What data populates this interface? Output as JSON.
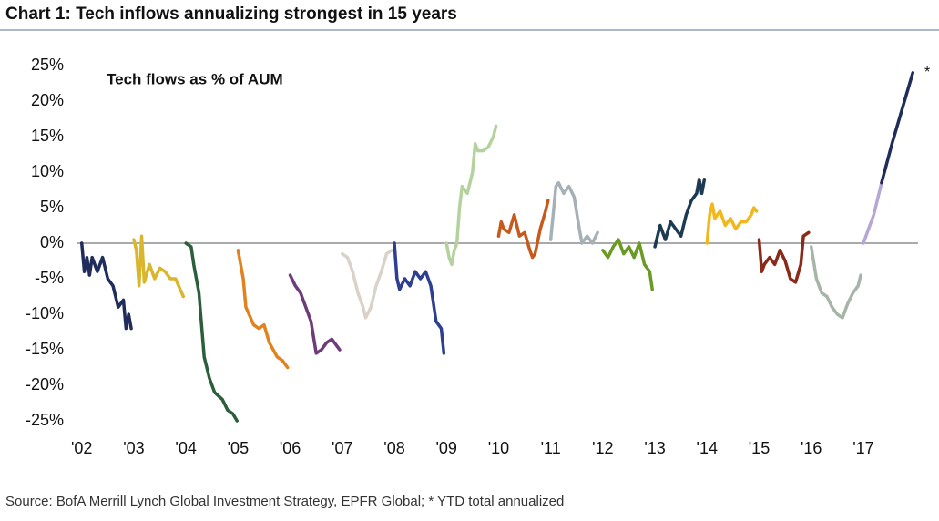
{
  "chart_data": {
    "type": "line",
    "title": "Chart 1: Tech inflows annualizing strongest in 15 years",
    "subtitle": "Tech flows as % of AUM",
    "annotation": "*",
    "source": "Source: BofA Merrill Lynch Global Investment Strategy, EPFR Global; * YTD total annualized",
    "xlim": [
      2001.9,
      2018.05
    ],
    "ylim": [
      -25,
      25
    ],
    "yticks": [
      {
        "value": 25,
        "label": "25%"
      },
      {
        "value": 20,
        "label": "20%"
      },
      {
        "value": 15,
        "label": "15%"
      },
      {
        "value": 10,
        "label": "10%"
      },
      {
        "value": 5,
        "label": "5%"
      },
      {
        "value": 0,
        "label": "0%"
      },
      {
        "value": -5,
        "label": "-5%"
      },
      {
        "value": -10,
        "label": "-10%"
      },
      {
        "value": -15,
        "label": "-15%"
      },
      {
        "value": -20,
        "label": "-20%"
      },
      {
        "value": -25,
        "label": "-25%"
      }
    ],
    "xticks": [
      {
        "value": 2002,
        "label": "'02"
      },
      {
        "value": 2003,
        "label": "'03"
      },
      {
        "value": 2004,
        "label": "'04"
      },
      {
        "value": 2005,
        "label": "'05"
      },
      {
        "value": 2006,
        "label": "'06"
      },
      {
        "value": 2007,
        "label": "'07"
      },
      {
        "value": 2008,
        "label": "'08"
      },
      {
        "value": 2009,
        "label": "'09"
      },
      {
        "value": 2010,
        "label": "'10"
      },
      {
        "value": 2011,
        "label": "'11"
      },
      {
        "value": 2012,
        "label": "'12"
      },
      {
        "value": 2013,
        "label": "'13"
      },
      {
        "value": 2014,
        "label": "'14"
      },
      {
        "value": 2015,
        "label": "'15"
      },
      {
        "value": 2016,
        "label": "'16"
      },
      {
        "value": 2017,
        "label": "'17"
      }
    ],
    "series": [
      {
        "color": "#1f2d5a",
        "x": [
          2002.0,
          2002.05,
          2002.1,
          2002.15,
          2002.2,
          2002.3,
          2002.4,
          2002.5,
          2002.6,
          2002.7,
          2002.8,
          2002.85,
          2002.9,
          2002.95
        ],
        "values": [
          0,
          -4,
          -2,
          -4.5,
          -2,
          -4,
          -2,
          -5,
          -6,
          -9,
          -8,
          -12,
          -10,
          -12
        ]
      },
      {
        "color": "#d9b62c",
        "x": [
          2003.0,
          2003.05,
          2003.1,
          2003.15,
          2003.2,
          2003.3,
          2003.4,
          2003.5,
          2003.6,
          2003.7,
          2003.8,
          2003.95
        ],
        "values": [
          0.5,
          -1,
          -6,
          1,
          -5.5,
          -3,
          -5,
          -3.5,
          -4,
          -5,
          -5,
          -7.5
        ]
      },
      {
        "color": "#2d5e3a",
        "x": [
          2004.0,
          2004.1,
          2004.15,
          2004.25,
          2004.35,
          2004.45,
          2004.55,
          2004.7,
          2004.8,
          2004.9,
          2004.98
        ],
        "values": [
          0,
          -0.5,
          -3,
          -7,
          -16,
          -19,
          -21,
          -22,
          -23.5,
          -24,
          -25
        ]
      },
      {
        "color": "#e0821e",
        "x": [
          2005.0,
          2005.1,
          2005.15,
          2005.3,
          2005.4,
          2005.5,
          2005.6,
          2005.75,
          2005.85,
          2005.95
        ],
        "values": [
          -1,
          -5,
          -9,
          -11.5,
          -12,
          -11.5,
          -14,
          -16,
          -16.5,
          -17.5
        ]
      },
      {
        "color": "#6e3c78",
        "x": [
          2006.0,
          2006.1,
          2006.2,
          2006.3,
          2006.4,
          2006.5,
          2006.6,
          2006.7,
          2006.8,
          2006.95
        ],
        "values": [
          -4.5,
          -6,
          -7,
          -9,
          -11,
          -15.5,
          -15,
          -14,
          -13.5,
          -15
        ]
      },
      {
        "color": "#d9d2c8",
        "x": [
          2007.0,
          2007.1,
          2007.2,
          2007.3,
          2007.4,
          2007.45,
          2007.55,
          2007.65,
          2007.75,
          2007.85,
          2007.95
        ],
        "values": [
          -1.5,
          -2,
          -4,
          -7,
          -9,
          -10.5,
          -9,
          -6,
          -4,
          -1.5,
          -1
        ]
      },
      {
        "color": "#2d3f8f",
        "x": [
          2008.0,
          2008.05,
          2008.1,
          2008.2,
          2008.3,
          2008.4,
          2008.5,
          2008.6,
          2008.7,
          2008.8,
          2008.9,
          2008.95
        ],
        "values": [
          0,
          -5,
          -6.5,
          -5,
          -6,
          -4,
          -5,
          -4,
          -6,
          -11,
          -12,
          -15.5
        ]
      },
      {
        "color": "#b4d29e",
        "x": [
          2009.0,
          2009.05,
          2009.1,
          2009.15,
          2009.2,
          2009.25,
          2009.3,
          2009.4,
          2009.5,
          2009.55,
          2009.6,
          2009.7,
          2009.8,
          2009.9,
          2009.95
        ],
        "values": [
          0,
          -2,
          -3,
          -1,
          0,
          5,
          8,
          7,
          10,
          14,
          13,
          13,
          13.5,
          15,
          16.5
        ]
      },
      {
        "color": "#c8591c",
        "x": [
          2010.0,
          2010.05,
          2010.1,
          2010.2,
          2010.3,
          2010.4,
          2010.5,
          2010.6,
          2010.65,
          2010.7,
          2010.8,
          2010.9,
          2010.95
        ],
        "values": [
          1,
          3,
          2,
          1.5,
          4,
          1,
          1.5,
          -1,
          -2,
          -1.5,
          2,
          4.5,
          6
        ]
      },
      {
        "color": "#a5b1b7",
        "x": [
          2011.0,
          2011.1,
          2011.15,
          2011.25,
          2011.35,
          2011.45,
          2011.55,
          2011.6,
          2011.7,
          2011.8,
          2011.9
        ],
        "values": [
          0.5,
          8,
          8.5,
          7,
          8,
          6.5,
          2,
          0,
          1,
          0,
          1.5
        ]
      },
      {
        "color": "#6a9a24",
        "x": [
          2012.0,
          2012.1,
          2012.2,
          2012.3,
          2012.4,
          2012.5,
          2012.6,
          2012.7,
          2012.8,
          2012.9,
          2012.95
        ],
        "values": [
          -1,
          -2,
          -0.5,
          0.5,
          -1.5,
          -0.5,
          -2,
          0,
          -3,
          -4,
          -6.5
        ]
      },
      {
        "color": "#1c3a52",
        "x": [
          2013.0,
          2013.05,
          2013.1,
          2013.2,
          2013.3,
          2013.4,
          2013.5,
          2013.6,
          2013.7,
          2013.8,
          2013.85,
          2013.9,
          2013.95
        ],
        "values": [
          -0.5,
          1,
          2.5,
          0.5,
          3,
          2,
          1,
          4,
          6,
          7,
          9,
          7,
          9
        ]
      },
      {
        "color": "#f0b81c",
        "x": [
          2014.0,
          2014.05,
          2014.1,
          2014.15,
          2014.25,
          2014.35,
          2014.45,
          2014.55,
          2014.65,
          2014.75,
          2014.85,
          2014.9,
          2014.95
        ],
        "values": [
          0,
          4,
          5.5,
          3.5,
          4.5,
          2.5,
          3.5,
          2,
          3,
          3,
          4,
          5,
          4.5
        ]
      },
      {
        "color": "#8a2a18",
        "x": [
          2015.0,
          2015.05,
          2015.1,
          2015.2,
          2015.3,
          2015.4,
          2015.5,
          2015.6,
          2015.7,
          2015.8,
          2015.85,
          2015.95
        ],
        "values": [
          0.5,
          -4,
          -3,
          -2,
          -3,
          -1,
          -2.5,
          -5,
          -5.5,
          -3,
          1,
          1.5
        ]
      },
      {
        "color": "#a6b5a8",
        "x": [
          2016.0,
          2016.1,
          2016.2,
          2016.3,
          2016.4,
          2016.5,
          2016.6,
          2016.7,
          2016.8,
          2016.9,
          2016.95
        ],
        "values": [
          -0.5,
          -5,
          -7,
          -7.5,
          -9,
          -10,
          -10.5,
          -8.5,
          -7,
          -6,
          -4.5
        ]
      },
      {
        "color": "#b7a6d4",
        "x": [
          2017.0,
          2017.1,
          2017.2,
          2017.3,
          2017.35
        ],
        "values": [
          0,
          2,
          4,
          7,
          8.5
        ]
      },
      {
        "color": "#1f2d5a",
        "x": [
          2017.35,
          2017.55,
          2017.75,
          2017.95
        ],
        "values": [
          8.5,
          14,
          19,
          24
        ]
      }
    ]
  }
}
